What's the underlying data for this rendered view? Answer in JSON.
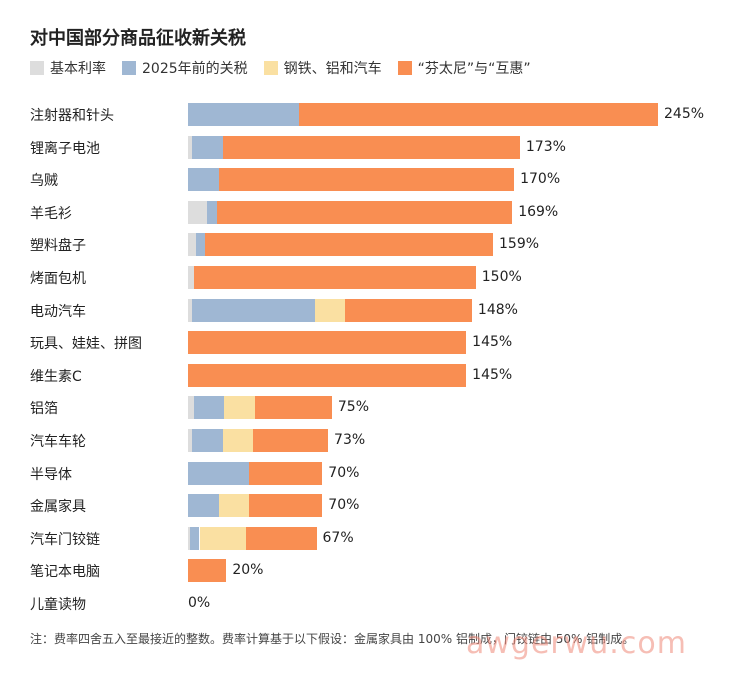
{
  "header": {
    "title": "对中国部分商品征收新关税"
  },
  "legend": [
    {
      "label": "基本利率",
      "color": "#dddddd"
    },
    {
      "label": "2025年前的关税",
      "color": "#9fb7d3"
    },
    {
      "label": "钢铁、铝和汽车",
      "color": "#fae0a2"
    },
    {
      "label": "“芬太尼”与“互惠”",
      "color": "#f98e52"
    }
  ],
  "chart_data": {
    "type": "bar",
    "orientation": "horizontal",
    "stacked": true,
    "title": "对中国部分商品征收新关税",
    "series": [
      {
        "name": "基本利率",
        "color": "#dddddd",
        "values": [
          0,
          2,
          0,
          10,
          4,
          3,
          2,
          0,
          0,
          3,
          2,
          0,
          0,
          1,
          0,
          0
        ]
      },
      {
        "name": "2025年前的关税",
        "color": "#9fb7d3",
        "values": [
          58,
          16,
          16,
          5,
          5,
          0,
          64,
          0,
          0,
          16,
          16,
          32,
          16,
          5,
          0,
          0
        ]
      },
      {
        "name": "钢铁、铝和汽车",
        "color": "#fae0a2",
        "values": [
          0,
          0,
          0,
          0,
          0,
          0,
          16,
          0,
          0,
          16,
          16,
          0,
          16,
          24,
          0,
          0
        ]
      },
      {
        "name": "“芬太尼”与“互惠”",
        "color": "#f98e52",
        "values": [
          187,
          155,
          154,
          154,
          150,
          147,
          66,
          145,
          145,
          40,
          39,
          38,
          38,
          37,
          20,
          0
        ]
      }
    ],
    "categories": [
      "注射器和针头",
      "锂离子电池",
      "乌贼",
      "羊毛衫",
      "塑料盘子",
      "烤面包机",
      "电动汽车",
      "玩具、娃娃、拼图",
      "维生素C",
      "铝箔",
      "汽车车轮",
      "半导体",
      "金属家具",
      "汽车门铰链",
      "笔记本电脑",
      "儿童读物"
    ],
    "totals": [
      "245%",
      "173%",
      "170%",
      "169%",
      "159%",
      "150%",
      "148%",
      "145%",
      "145%",
      "75%",
      "73%",
      "70%",
      "70%",
      "67%",
      "20%",
      "0%"
    ],
    "xlim": [
      0,
      245
    ],
    "grid": false,
    "legend_position": "top"
  },
  "footnote": "注：费率四舍五入至最接近的整数。费率计算基于以下假设：金属家具由 100% 铝制成，门铰链由 50% 铝制成。",
  "watermark": "awgerwu.com"
}
